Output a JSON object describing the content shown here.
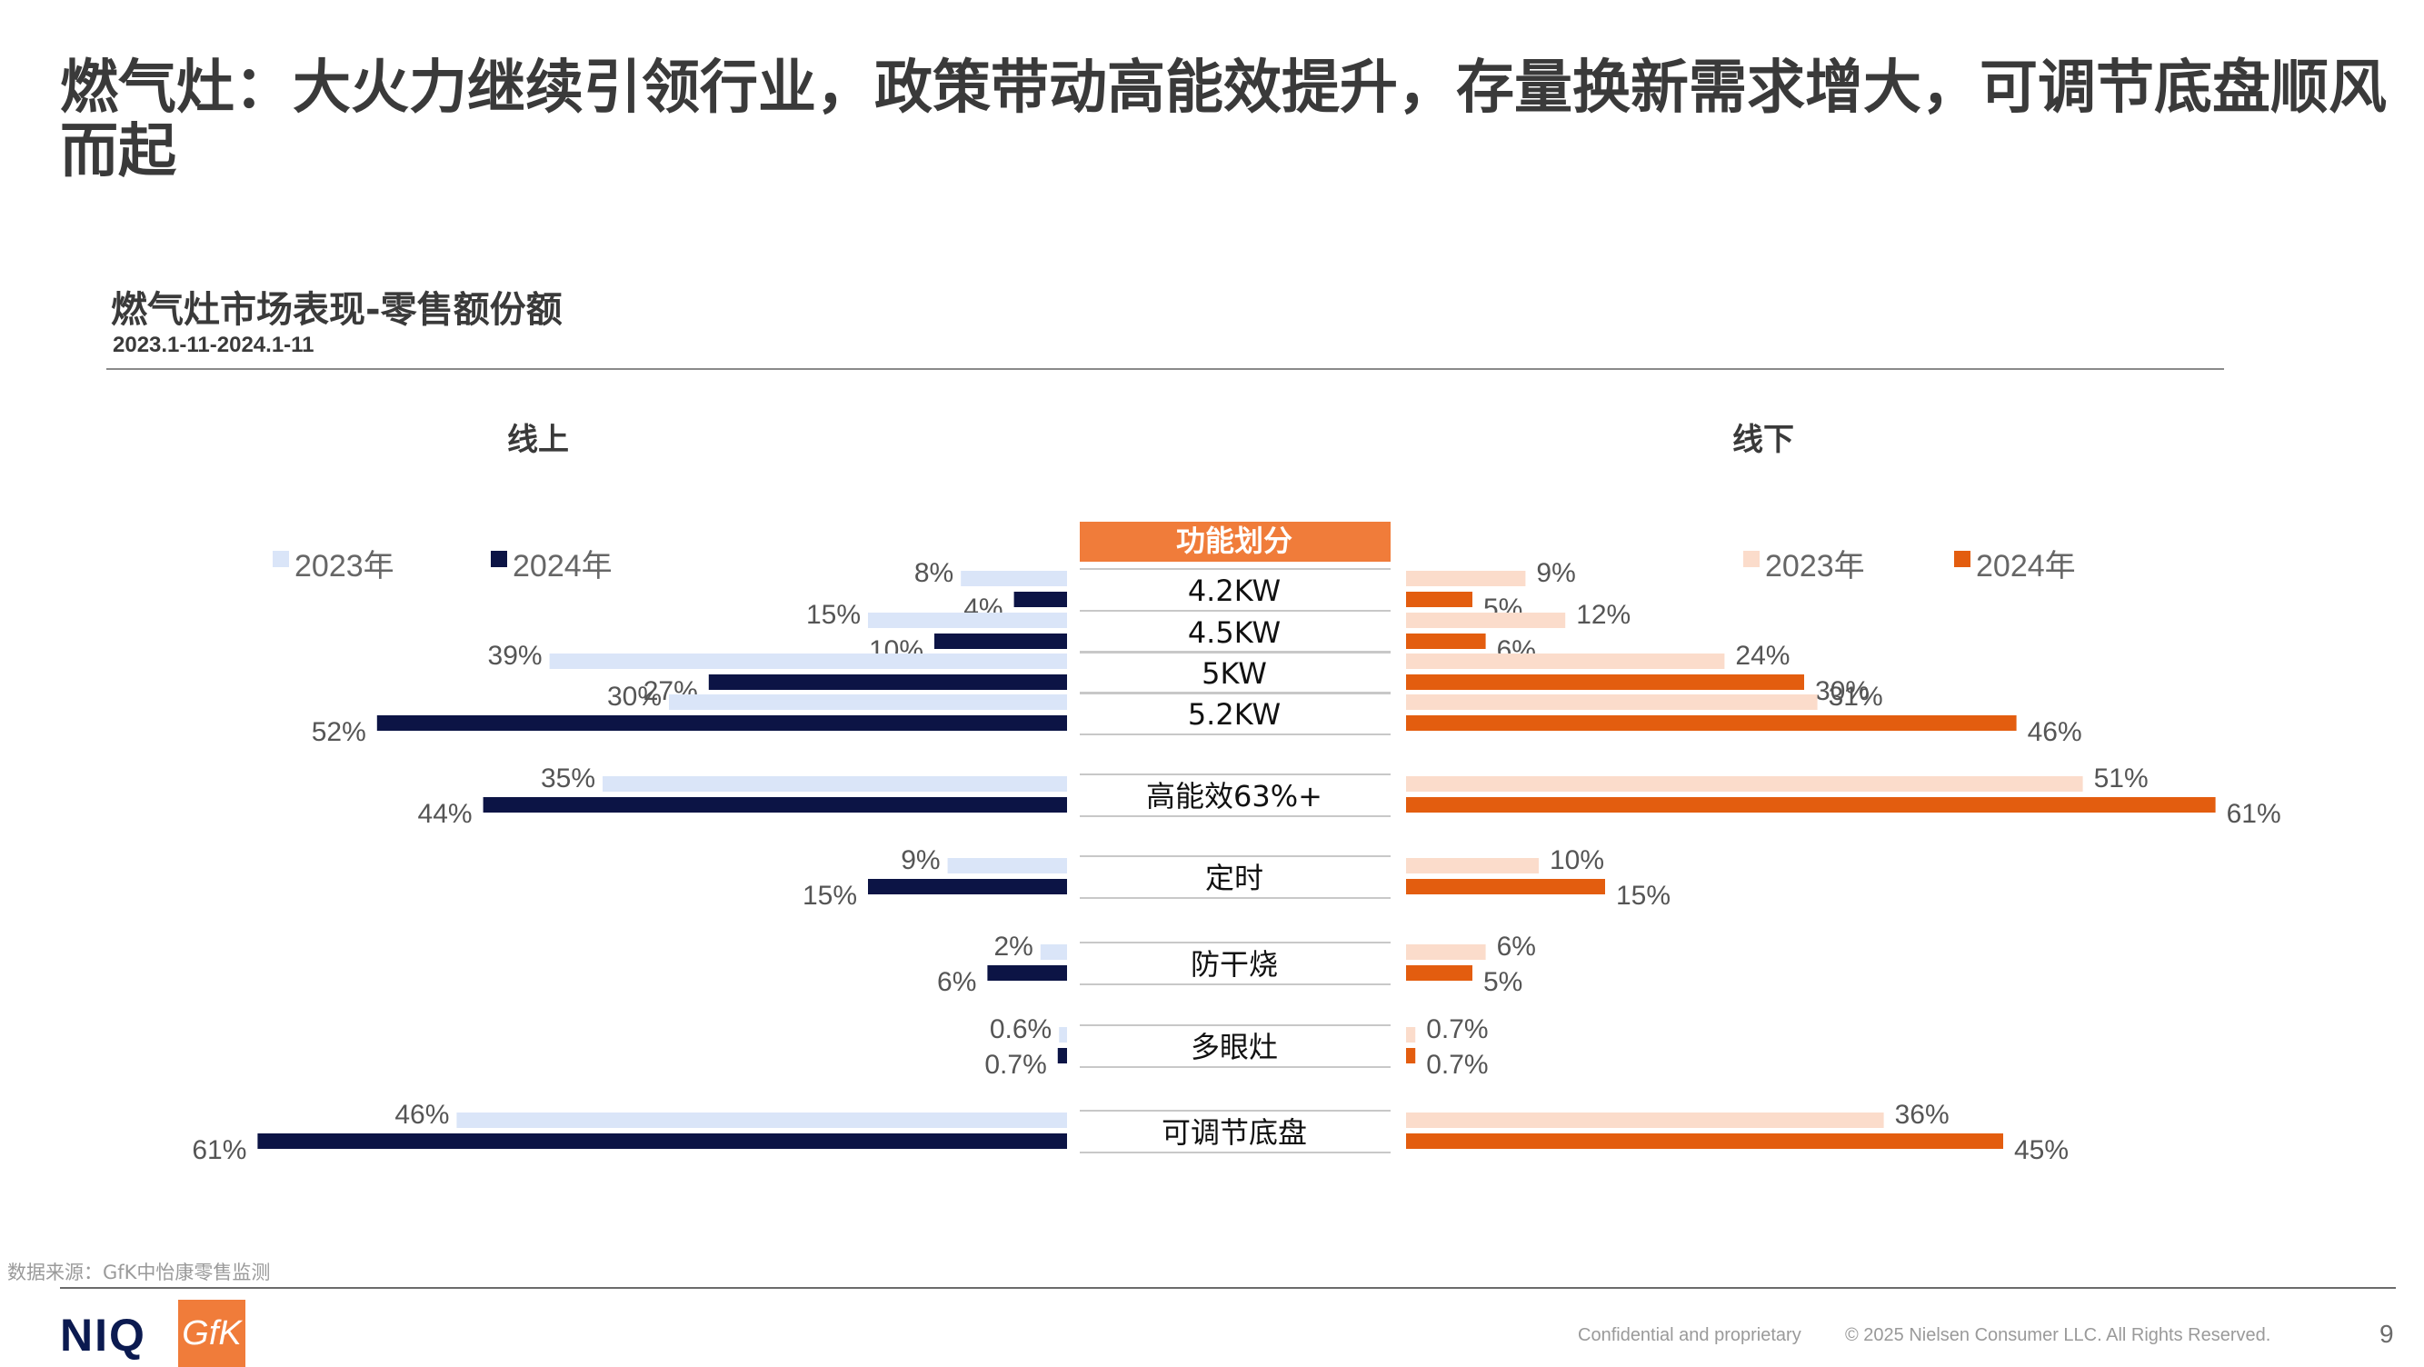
{
  "page_title": "燃气灶：大火力继续引领行业，政策带动高能效提升，存量换新需求增大，可调节底盘顺风而起",
  "chart_title": "燃气灶市场表现-零售额份额",
  "chart_subtitle": "2023.1-11-2024.1-11",
  "panels": {
    "online": "线上",
    "offline": "线下"
  },
  "center_header": "功能划分",
  "legend": {
    "y2023": "2023年",
    "y2024": "2024年"
  },
  "colors": {
    "online_2023": "#dae5f8",
    "online_2024": "#0c1445",
    "offline_2023": "#fbdccb",
    "offline_2024": "#e35d0f",
    "center_header": "#f07c3a"
  },
  "chart_data": {
    "type": "bar",
    "orientation": "horizontal-diverging",
    "categories": [
      "4.2KW",
      "4.5KW",
      "5KW",
      "5.2KW",
      "高能效63%+",
      "定时",
      "防干烧",
      "多眼灶",
      "可调节底盘"
    ],
    "online": {
      "series": [
        {
          "name": "2023年",
          "values": [
            8,
            15,
            39,
            30,
            35,
            9,
            2,
            0.6,
            46
          ],
          "labels": [
            "8%",
            "15%",
            "39%",
            "30%",
            "35%",
            "9%",
            "2%",
            "0.6%",
            "46%"
          ]
        },
        {
          "name": "2024年",
          "values": [
            4,
            10,
            27,
            52,
            44,
            15,
            6,
            0.7,
            61
          ],
          "labels": [
            "4%",
            "10%",
            "27%",
            "52%",
            "44%",
            "15%",
            "6%",
            "0.7%",
            "61%"
          ]
        }
      ]
    },
    "offline": {
      "series": [
        {
          "name": "2023年",
          "values": [
            9,
            12,
            24,
            31,
            51,
            10,
            6,
            0.7,
            36
          ],
          "labels": [
            "9%",
            "12%",
            "24%",
            "31%",
            "51%",
            "10%",
            "6%",
            "0.7%",
            "36%"
          ]
        },
        {
          "name": "2024年",
          "values": [
            5,
            6,
            30,
            46,
            61,
            15,
            5,
            0.7,
            45
          ],
          "labels": [
            "5%",
            "6%",
            "30%",
            "46%",
            "61%",
            "15%",
            "5%",
            "0.7%",
            "45%"
          ]
        }
      ]
    }
  },
  "footer": {
    "source": "数据来源：GfK中怡康零售监测",
    "logo_niq": "NIQ",
    "logo_gfk": "GfK",
    "confidential": "Confidential and proprietary",
    "copyright": "© 2025 Nielsen Consumer LLC. All Rights Reserved.",
    "page_number": "9"
  }
}
